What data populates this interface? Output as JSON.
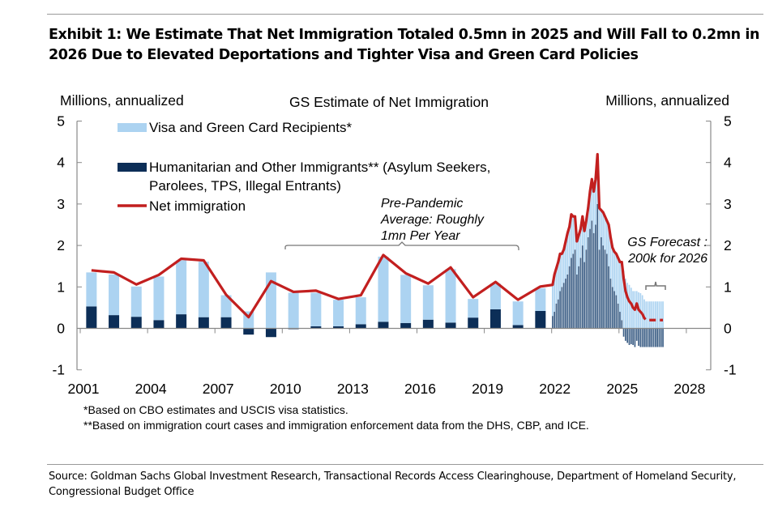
{
  "title": "Exhibit 1: We Estimate That Net Immigration Totaled 0.5mn in 2025 and Will Fall to 0.2mn in 2026 Due to Elevated Deportations and Tighter Visa and Green Card Policies",
  "source": "Source: Goldman Sachs Global Investment Research, Transactional Records Access Clearinghouse, Department of Homeland Security, Congressional Budget Office",
  "chart_data": {
    "type": "bar",
    "title": "GS Estimate of Net Immigration",
    "ylabel_left": "Millions, annualized",
    "ylabel_right": "Millions, annualized",
    "ylim": [
      -1,
      5
    ],
    "yticks": [
      "5",
      "4",
      "3",
      "2",
      "1",
      "0",
      "-1"
    ],
    "xlim": [
      2001,
      2028
    ],
    "xticks": [
      "2001",
      "2004",
      "2007",
      "2010",
      "2013",
      "2016",
      "2019",
      "2022",
      "2025",
      "2028"
    ],
    "grid": false,
    "legend_placement": "top-left",
    "colors": {
      "visa": "#acd3f1",
      "humanitarian": "#0c2e57",
      "humanitarian_monthly": "#3d5f86",
      "net": "#c21f1f"
    },
    "legend": [
      "Visa and Green Card Recipients*",
      "Humanitarian and Other Immigrants** (Asylum Seekers,",
      "Parolees, TPS, Illegal Entrants)",
      "Net immigration"
    ],
    "annual": {
      "years": [
        2001,
        2002,
        2003,
        2004,
        2005,
        2006,
        2007,
        2008,
        2009,
        2010,
        2011,
        2012,
        2013,
        2014,
        2015,
        2016,
        2017,
        2018,
        2019,
        2020,
        2021
      ],
      "visa": [
        0.82,
        0.98,
        0.73,
        1.05,
        1.3,
        1.34,
        0.53,
        0.41,
        1.35,
        0.86,
        0.81,
        0.64,
        0.65,
        1.57,
        1.16,
        0.83,
        1.29,
        0.45,
        0.62,
        0.57,
        0.55
      ],
      "humanitarian": [
        0.53,
        0.32,
        0.28,
        0.2,
        0.34,
        0.27,
        0.27,
        -0.15,
        -0.21,
        -0.02,
        0.05,
        0.05,
        0.1,
        0.16,
        0.13,
        0.21,
        0.14,
        0.26,
        0.46,
        0.08,
        0.42
      ],
      "net": [
        1.4,
        1.35,
        1.06,
        1.29,
        1.68,
        1.64,
        0.81,
        0.27,
        1.14,
        0.88,
        0.91,
        0.71,
        0.8,
        1.77,
        1.33,
        1.08,
        1.47,
        0.75,
        1.12,
        0.69,
        1.01
      ]
    },
    "monthly": {
      "start": "2022-01",
      "end": "2026-12",
      "forecast_from": "2026-02",
      "visa": [
        0.75,
        0.9,
        0.85,
        0.9,
        0.9,
        0.8,
        0.8,
        0.9,
        1.0,
        0.95,
        1.05,
        0.9,
        0.8,
        0.8,
        0.75,
        0.7,
        0.7,
        0.75,
        0.7,
        0.7,
        0.9,
        1.0,
        1.0,
        1.1,
        1.2,
        1.0,
        0.65,
        0.8,
        0.8,
        0.8,
        1.0,
        1.0,
        0.95,
        0.95,
        1.0,
        1.1,
        1.2,
        1.4,
        1.4,
        1.2,
        1.1,
        1.05,
        0.98,
        0.9,
        0.9,
        0.9,
        0.87,
        0.85,
        0.8,
        0.7,
        0.65,
        0.65,
        0.65,
        0.65,
        0.65,
        0.65,
        0.65,
        0.65,
        0.65,
        0.65
      ],
      "humanitarian": [
        0.3,
        0.4,
        0.6,
        0.7,
        0.9,
        1.0,
        1.1,
        1.2,
        1.3,
        1.5,
        1.7,
        1.8,
        1.9,
        1.3,
        1.5,
        1.7,
        2.0,
        1.6,
        1.9,
        2.2,
        2.4,
        2.6,
        2.3,
        2.5,
        3.0,
        1.9,
        2.2,
        2.0,
        1.9,
        1.8,
        1.5,
        1.2,
        1.0,
        0.9,
        0.8,
        0.6,
        0.4,
        0.2,
        -0.2,
        -0.3,
        -0.35,
        -0.4,
        -0.38,
        -0.4,
        -0.45,
        -0.3,
        -0.42,
        -0.45,
        -0.45,
        -0.45,
        -0.45,
        -0.45,
        -0.45,
        -0.45,
        -0.45,
        -0.45,
        -0.45,
        -0.45,
        -0.45,
        -0.45
      ],
      "net": [
        1.05,
        1.3,
        1.45,
        1.6,
        1.8,
        1.8,
        1.9,
        2.1,
        2.3,
        2.45,
        2.75,
        2.7,
        2.7,
        2.1,
        2.25,
        2.4,
        2.7,
        2.35,
        2.6,
        2.9,
        3.3,
        3.6,
        3.3,
        3.6,
        4.2,
        2.9,
        2.85,
        2.8,
        2.7,
        2.6,
        2.5,
        2.2,
        1.95,
        1.85,
        1.8,
        1.7,
        1.6,
        1.6,
        1.2,
        0.9,
        0.75,
        0.65,
        0.6,
        0.5,
        0.45,
        0.6,
        0.45,
        0.4,
        0.35,
        0.25,
        0.2,
        0.2,
        0.2,
        0.2,
        0.2,
        0.2,
        0.2,
        0.2,
        0.2,
        0.2
      ]
    },
    "annotations": {
      "pre_pandemic": [
        "Pre-Pandemic",
        "Average: Roughly",
        "1mn Per Year"
      ],
      "forecast": [
        "GS Forecast :",
        "200k for 2026"
      ]
    },
    "footnotes": [
      "*Based on CBO estimates and USCIS visa statistics.",
      "**Based on immigration court cases and immigration enforcement data from the DHS, CBP, and ICE."
    ]
  }
}
